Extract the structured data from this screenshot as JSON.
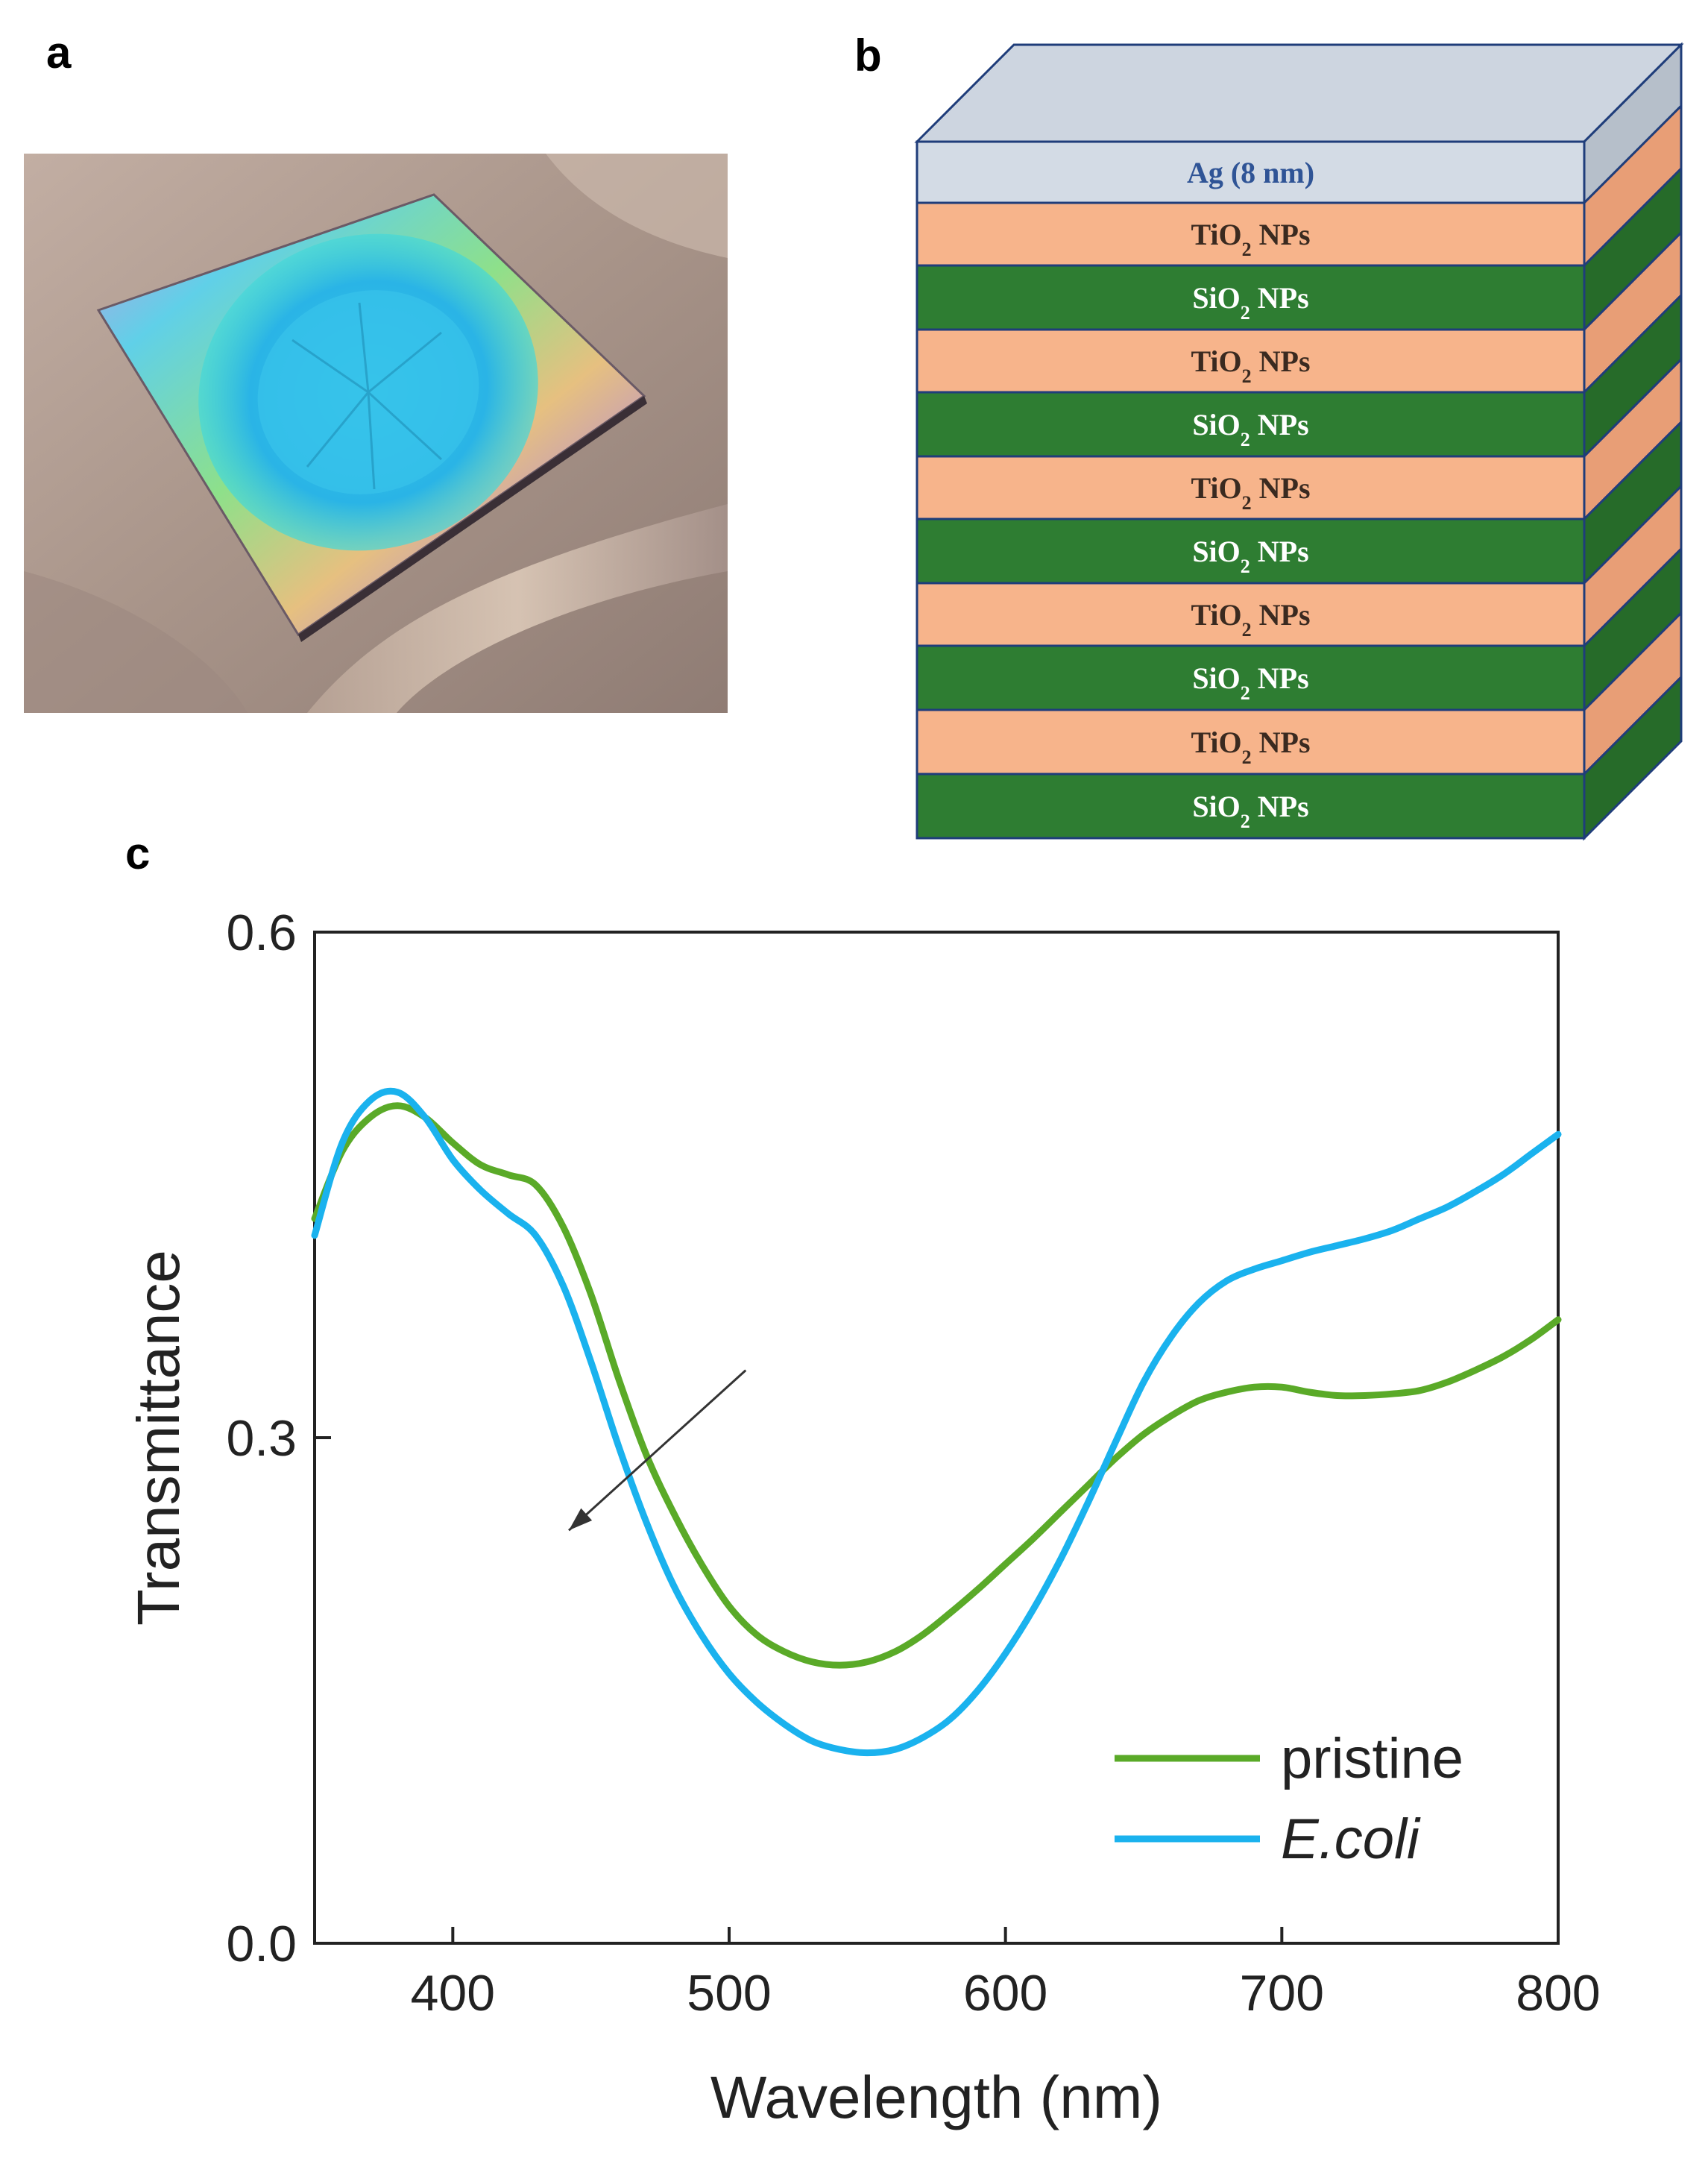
{
  "panels": {
    "a": "a",
    "b": "b",
    "c": "c"
  },
  "photo": {
    "icon": "iridescent-film-photo-icon"
  },
  "stack": {
    "top_label": "Ag (8 nm)",
    "layers": [
      {
        "material": "TiO",
        "sub": "2",
        "suffix": " NPs"
      },
      {
        "material": "SiO",
        "sub": "2",
        "suffix": " NPs"
      },
      {
        "material": "TiO",
        "sub": "2",
        "suffix": " NPs"
      },
      {
        "material": "SiO",
        "sub": "2",
        "suffix": " NPs"
      },
      {
        "material": "TiO",
        "sub": "2",
        "suffix": " NPs"
      },
      {
        "material": "SiO",
        "sub": "2",
        "suffix": " NPs"
      },
      {
        "material": "TiO",
        "sub": "2",
        "suffix": " NPs"
      },
      {
        "material": "SiO",
        "sub": "2",
        "suffix": " NPs"
      },
      {
        "material": "TiO",
        "sub": "2",
        "suffix": " NPs"
      },
      {
        "material": "SiO",
        "sub": "2",
        "suffix": " NPs"
      }
    ],
    "colors": {
      "ag_front": "#d3dbe5",
      "ag_top": "#cdd5e0",
      "ag_side": "#b6bfca",
      "ag_text": "#2f5496",
      "tio2_front": "#f7b48b",
      "tio2_side": "#e89e76",
      "tio2_text": "#3a2a20",
      "sio2_front": "#2e7d32",
      "sio2_side": "#266b29",
      "sio2_text": "#ffffff",
      "edge": "#1f3d7a"
    }
  },
  "chart_data": {
    "type": "line",
    "xlabel": "Wavelength (nm)",
    "ylabel": "Transmittance",
    "xlim": [
      350,
      800
    ],
    "ylim": [
      0.0,
      0.6
    ],
    "xticks": [
      400,
      500,
      600,
      700,
      800
    ],
    "yticks": [
      0.0,
      0.3,
      0.6
    ],
    "ytick_labels": [
      "0.0",
      "0.3",
      "0.6"
    ],
    "grid": false,
    "legend_position": "bottom-right",
    "series": [
      {
        "name": "pristine",
        "color": "#5aaa28",
        "x": [
          350,
          360,
          370,
          380,
          390,
          400,
          410,
          420,
          430,
          440,
          450,
          460,
          470,
          480,
          490,
          500,
          510,
          520,
          530,
          540,
          550,
          560,
          570,
          580,
          590,
          600,
          610,
          620,
          630,
          640,
          650,
          660,
          670,
          680,
          690,
          700,
          710,
          720,
          730,
          740,
          750,
          760,
          770,
          780,
          790,
          800
        ],
        "y": [
          0.43,
          0.47,
          0.49,
          0.497,
          0.49,
          0.475,
          0.462,
          0.456,
          0.45,
          0.425,
          0.385,
          0.335,
          0.29,
          0.255,
          0.225,
          0.2,
          0.183,
          0.173,
          0.167,
          0.165,
          0.167,
          0.173,
          0.183,
          0.196,
          0.21,
          0.225,
          0.24,
          0.256,
          0.272,
          0.288,
          0.302,
          0.313,
          0.322,
          0.327,
          0.33,
          0.33,
          0.327,
          0.325,
          0.325,
          0.326,
          0.328,
          0.333,
          0.34,
          0.348,
          0.358,
          0.37
        ]
      },
      {
        "name": "E.coli",
        "color": "#1ab2ee",
        "x": [
          350,
          360,
          370,
          380,
          390,
          400,
          410,
          420,
          430,
          440,
          450,
          460,
          470,
          480,
          490,
          500,
          510,
          520,
          530,
          540,
          550,
          560,
          570,
          580,
          590,
          600,
          610,
          620,
          630,
          640,
          650,
          660,
          670,
          680,
          690,
          700,
          710,
          720,
          730,
          740,
          750,
          760,
          770,
          780,
          790,
          800
        ],
        "y": [
          0.42,
          0.475,
          0.5,
          0.505,
          0.49,
          0.465,
          0.447,
          0.433,
          0.42,
          0.39,
          0.345,
          0.295,
          0.25,
          0.212,
          0.183,
          0.16,
          0.143,
          0.13,
          0.12,
          0.115,
          0.113,
          0.115,
          0.122,
          0.133,
          0.15,
          0.172,
          0.198,
          0.228,
          0.262,
          0.298,
          0.333,
          0.36,
          0.38,
          0.393,
          0.4,
          0.405,
          0.41,
          0.414,
          0.418,
          0.423,
          0.43,
          0.437,
          0.446,
          0.456,
          0.468,
          0.48
        ]
      }
    ],
    "legend": [
      {
        "label": "pristine",
        "color": "#5aaa28",
        "style": "normal"
      },
      {
        "label": "E.coli",
        "color": "#1ab2ee",
        "style": "italic"
      }
    ],
    "annotation": {
      "type": "arrow",
      "from": [
        506,
        0.34
      ],
      "to": [
        442,
        0.245
      ],
      "color": "#333333"
    }
  }
}
